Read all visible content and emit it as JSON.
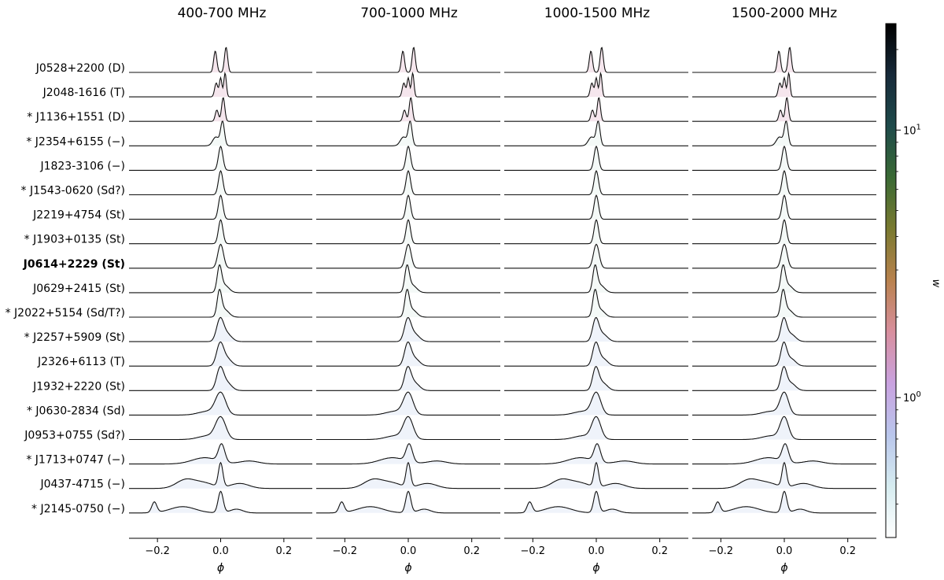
{
  "chart_data": {
    "type": "line",
    "panels": [
      {
        "title": "400-700 MHz"
      },
      {
        "title": "700-1000 MHz"
      },
      {
        "title": "1000-1500 MHz"
      },
      {
        "title": "1500-2000 MHz"
      }
    ],
    "xlabel": "ϕ",
    "xlim": [
      -0.29,
      0.29
    ],
    "xticks": [
      {
        "value": -0.2,
        "label": "−0.2"
      },
      {
        "value": 0.0,
        "label": "0.0"
      },
      {
        "value": 0.2,
        "label": "0.2"
      }
    ],
    "pulsars": [
      {
        "label": "J0528+2200 (D)",
        "shape": "double",
        "bold": false
      },
      {
        "label": "J2048-1616 (T)",
        "shape": "triple",
        "bold": false
      },
      {
        "label": "* J1136+1551 (D)",
        "shape": "double-small",
        "bold": false
      },
      {
        "label": "* J2354+6155 (−)",
        "shape": "shoulder",
        "bold": false
      },
      {
        "label": "J1823-3106 (−)",
        "shape": "single",
        "bold": false
      },
      {
        "label": "* J1543-0620 (Sd?)",
        "shape": "single",
        "bold": false
      },
      {
        "label": "J2219+4754 (St)",
        "shape": "single",
        "bold": false
      },
      {
        "label": "* J1903+0135 (St)",
        "shape": "single",
        "bold": false
      },
      {
        "label": "J0614+2229 (St)",
        "shape": "single-wide",
        "bold": true
      },
      {
        "label": "J0629+2415 (St)",
        "shape": "single-tail",
        "bold": false
      },
      {
        "label": "* J2022+5154 (Sd/T?)",
        "shape": "single-tail",
        "bold": false
      },
      {
        "label": "* J2257+5909 (St)",
        "shape": "broad",
        "bold": false
      },
      {
        "label": "J2326+6113 (T)",
        "shape": "broad",
        "bold": false
      },
      {
        "label": "J1932+2220 (St)",
        "shape": "broad",
        "bold": false
      },
      {
        "label": "* J0630-2834 (Sd)",
        "shape": "broad-wide",
        "bold": false
      },
      {
        "label": "J0953+0755 (Sd?)",
        "shape": "broad-wide",
        "bold": false
      },
      {
        "label": "* J1713+0747 (−)",
        "shape": "wide-wing",
        "bold": false
      },
      {
        "label": "J0437-4715 (−)",
        "shape": "complex",
        "bold": false
      },
      {
        "label": "* J2145-0750 (−)",
        "shape": "complex-2",
        "bold": false
      }
    ],
    "colorbar": {
      "label": "w",
      "scale": "log",
      "range": [
        0.3,
        25
      ],
      "ticks": [
        {
          "value": 1,
          "base": "10",
          "exp": "0"
        },
        {
          "value": 10,
          "base": "10",
          "exp": "1"
        }
      ],
      "colormap": [
        "#ffffff",
        "#d6ecf0",
        "#b9c6ec",
        "#c9a2e0",
        "#d88f9e",
        "#b9824e",
        "#7a7a30",
        "#3a6a34",
        "#1e4a4a",
        "#172a3a",
        "#000000"
      ]
    },
    "grid": false,
    "legend": "none"
  }
}
